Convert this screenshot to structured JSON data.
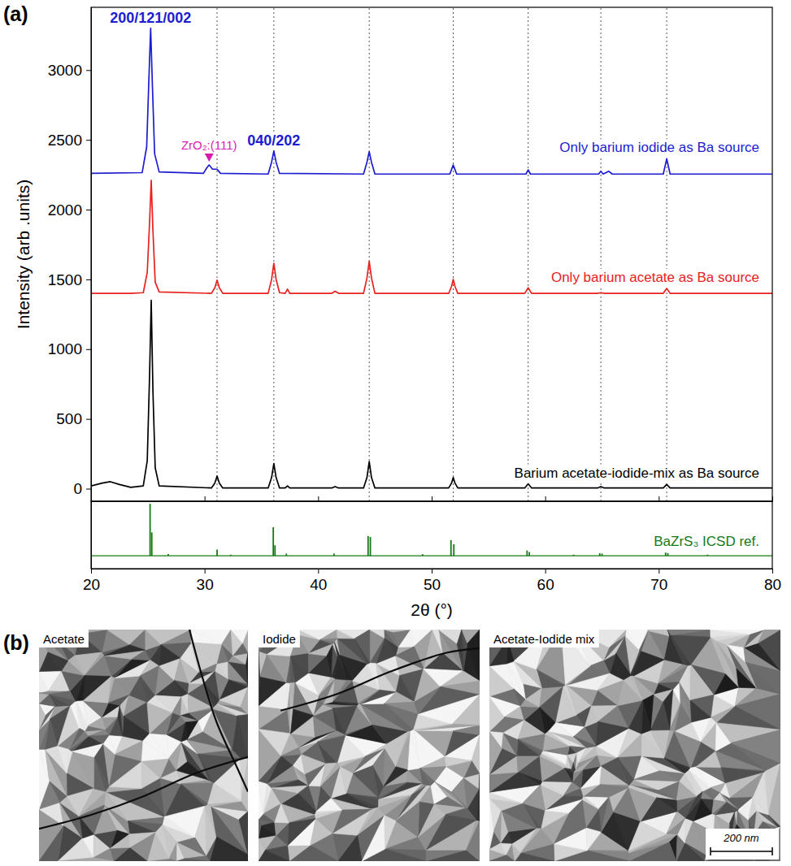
{
  "chart_data": [
    {
      "type": "line",
      "panel_label": "(a)",
      "ylabel": "Intensity (arb .units)",
      "xlim": [
        20,
        80
      ],
      "xticks": [
        20,
        30,
        40,
        50,
        60,
        70,
        80
      ],
      "ylim": [
        -90,
        3450
      ],
      "yticks": [
        0,
        500,
        1000,
        1500,
        2000,
        2500,
        3000
      ],
      "tick_labels": "y",
      "reference_lines": [
        31.1,
        36.1,
        44.5,
        51.9,
        58.5,
        64.9,
        70.7
      ],
      "annotations": [
        {
          "text": "200/121/002",
          "x": 25.25,
          "y": 3300,
          "color": "#1c1cd0"
        },
        {
          "text": "ZrO₂:(111)",
          "x": 30.4,
          "y": 2320,
          "color": "#d81bb0",
          "marker": "triangle"
        },
        {
          "text": "040/202",
          "x": 36.1,
          "y": 2420,
          "color": "#1c1cd0"
        }
      ],
      "series": [
        {
          "name": "Only barium iodide as Ba source",
          "color": "#1c1cd0",
          "x": [
            20,
            24.5,
            24.9,
            25.1,
            25.25,
            25.4,
            25.6,
            26,
            29.9,
            30.2,
            30.4,
            30.7,
            31.1,
            31.4,
            35.6,
            35.9,
            36.1,
            36.3,
            36.6,
            44.0,
            44.3,
            44.5,
            44.7,
            45.0,
            51.6,
            51.9,
            52.2,
            58.3,
            58.5,
            58.7,
            64.7,
            64.9,
            65.1,
            65.6,
            65.9,
            70.4,
            70.7,
            71.0,
            80
          ],
          "values": [
            2260,
            2265,
            2450,
            2950,
            3300,
            2900,
            2400,
            2270,
            2260,
            2300,
            2320,
            2290,
            2290,
            2260,
            2255,
            2340,
            2420,
            2340,
            2260,
            2255,
            2340,
            2415,
            2340,
            2255,
            2255,
            2320,
            2255,
            2255,
            2285,
            2255,
            2255,
            2275,
            2255,
            2275,
            2255,
            2255,
            2365,
            2255,
            2255
          ]
        },
        {
          "name": "Only barium acetate as Ba source",
          "color": "#e8201e",
          "x": [
            20,
            21,
            21.7,
            22.5,
            23.5,
            24.6,
            24.95,
            25.15,
            25.3,
            25.45,
            25.65,
            26,
            30.6,
            30.9,
            31.1,
            31.3,
            31.6,
            35.6,
            35.9,
            36.1,
            36.3,
            36.6,
            37.1,
            37.3,
            37.5,
            41.2,
            41.5,
            41.8,
            44.0,
            44.3,
            44.5,
            44.7,
            45.0,
            51.5,
            51.75,
            51.9,
            52.05,
            52.3,
            58.2,
            58.5,
            58.8,
            64.6,
            64.9,
            65.2,
            70.4,
            70.7,
            71.0,
            80
          ],
          "values": [
            1400,
            1400,
            1400,
            1400,
            1400,
            1405,
            1550,
            1900,
            2210,
            1850,
            1480,
            1410,
            1400,
            1440,
            1495,
            1440,
            1400,
            1400,
            1500,
            1615,
            1500,
            1405,
            1400,
            1430,
            1400,
            1400,
            1415,
            1400,
            1400,
            1510,
            1630,
            1510,
            1400,
            1400,
            1450,
            1500,
            1450,
            1400,
            1400,
            1440,
            1400,
            1400,
            1405,
            1400,
            1400,
            1435,
            1400,
            1400
          ]
        },
        {
          "name": "Barium acetate-iodide-mix as Ba source",
          "color": "#000000",
          "x": [
            20,
            21,
            21.7,
            22.5,
            23.5,
            24.6,
            24.95,
            25.15,
            25.3,
            25.45,
            25.65,
            26,
            30.6,
            30.9,
            31.1,
            31.3,
            31.6,
            35.6,
            35.9,
            36.1,
            36.3,
            36.6,
            37.1,
            37.3,
            37.5,
            41.2,
            41.5,
            41.8,
            44.0,
            44.3,
            44.5,
            44.7,
            45.0,
            51.5,
            51.75,
            51.9,
            52.05,
            52.3,
            58.2,
            58.5,
            58.8,
            64.6,
            64.9,
            65.2,
            70.4,
            70.7,
            71.0,
            80
          ],
          "values": [
            20,
            40,
            50,
            30,
            10,
            20,
            200,
            800,
            1350,
            700,
            150,
            20,
            5,
            40,
            90,
            40,
            5,
            5,
            80,
            180,
            80,
            5,
            5,
            20,
            5,
            5,
            15,
            5,
            5,
            80,
            195,
            80,
            5,
            5,
            40,
            80,
            40,
            5,
            5,
            35,
            5,
            5,
            15,
            5,
            5,
            30,
            5,
            5
          ]
        }
      ]
    },
    {
      "type": "stem",
      "xlabel": "2θ (°)",
      "xlim": [
        20,
        80
      ],
      "xticks": [
        20,
        30,
        40,
        50,
        60,
        70,
        80
      ],
      "ylim": [
        -25,
        105
      ],
      "tick_labels": "x",
      "series": [
        {
          "name": "BaZrS₃ ICSD ref.",
          "color": "#157a15",
          "x": [
            25.2,
            25.35,
            26.8,
            31.1,
            32.3,
            36.05,
            36.2,
            37.2,
            41.4,
            44.4,
            44.6,
            49.2,
            51.7,
            51.95,
            58.4,
            58.6,
            62.5,
            64.8,
            65.0,
            70.6,
            70.8,
            74.3
          ],
          "values": [
            100,
            45,
            3,
            12,
            2,
            55,
            20,
            4,
            4,
            38,
            36,
            3,
            30,
            22,
            10,
            7,
            2,
            5,
            4,
            6,
            5,
            2
          ]
        }
      ]
    }
  ],
  "figure": {
    "panel_label": "(b)",
    "images": [
      {
        "label": "Acetate"
      },
      {
        "label": "Iodide"
      },
      {
        "label": "Acetate-Iodide mix"
      }
    ],
    "scale_bar": "200 nm"
  }
}
